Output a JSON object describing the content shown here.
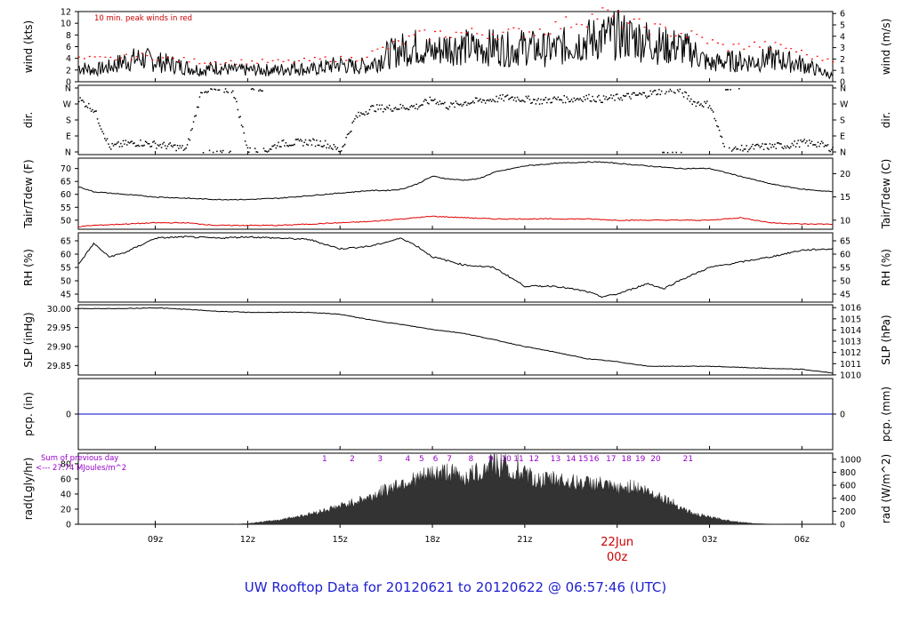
{
  "chart_data": {
    "type": "line",
    "title": "UW Rooftop Data for 20120621  to  20120622 @ 06:57:46  (UTC)",
    "x_axis": {
      "ticks": [
        "09z",
        "12z",
        "15z",
        "18z",
        "21z",
        "22Jun",
        "03z",
        "06z"
      ],
      "date_label": "22Jun",
      "date_sublabel": "00z",
      "date_color": "#cc0000"
    },
    "panels": [
      {
        "id": "wind",
        "left_label": "wind (kts)",
        "right_label": "wind (m/s)",
        "left_ticks": [
          "0",
          "2",
          "4",
          "6",
          "8",
          "10",
          "12"
        ],
        "right_ticks": [
          "0",
          "1",
          "2",
          "3",
          "4",
          "5",
          "6"
        ],
        "ylim": [
          0,
          12
        ],
        "annotation": "10 min. peak winds in red",
        "series": [
          {
            "color": "#000000",
            "x": [
              6.5,
              7,
              7.5,
              8,
              8.5,
              9,
              9.5,
              10,
              10.5,
              11,
              11.5,
              12,
              12.5,
              13,
              13.5,
              14,
              14.5,
              15,
              15.5,
              16,
              16.5,
              17,
              17.5,
              18,
              18.5,
              19,
              19.5,
              20,
              20.5,
              21,
              21.5,
              22,
              22.5,
              23,
              23.5,
              24,
              24.5,
              25,
              25.5,
              26,
              26.5,
              27,
              27.5,
              28,
              28.5,
              29,
              29.5,
              30,
              30.5,
              31
            ],
            "values": [
              2.5,
              2,
              2.5,
              3.5,
              4,
              3.5,
              3,
              2.5,
              2,
              2.5,
              2,
              2,
              2,
              2,
              2.5,
              2,
              2.5,
              3,
              2.5,
              3,
              4.5,
              5.5,
              6,
              5,
              6,
              6,
              5.5,
              6,
              5.5,
              6,
              5.5,
              5.5,
              6.5,
              7,
              7.5,
              8,
              7.5,
              7,
              6,
              6,
              5,
              3,
              3.5,
              3.5,
              3.5,
              4,
              3.5,
              3,
              2,
              1
            ]
          },
          {
            "color": "#ff0000",
            "x": [
              6.5,
              7.5,
              8.5,
              9.5,
              10.5,
              11.5,
              12.5,
              13.5,
              14.5,
              15.5,
              16.5,
              17.5,
              18.5,
              19.5,
              20.5,
              21.5,
              22.5,
              23,
              23.5,
              24,
              24.5,
              25.5,
              26.5,
              27.5,
              28.5,
              29.5,
              30.5
            ],
            "values": [
              4,
              4,
              4.5,
              4,
              3.5,
              3.5,
              3.5,
              3.5,
              4,
              4,
              6,
              8,
              8.5,
              8.5,
              8.5,
              9,
              10.5,
              11,
              12,
              11,
              10,
              9,
              8,
              6,
              6.5,
              6,
              4
            ]
          }
        ]
      },
      {
        "id": "dir",
        "left_label": "dir.",
        "right_label": "dir.",
        "left_ticks": [
          "N",
          "E",
          "S",
          "W",
          "N"
        ],
        "right_ticks": [
          "N",
          "E",
          "S",
          "W",
          "N"
        ],
        "ylim": [
          0,
          360
        ],
        "series": [
          {
            "color": "#000000",
            "type": "scatter",
            "x": [
              6.5,
              7,
              7.5,
              8,
              8.5,
              9,
              9.5,
              10,
              10.5,
              11,
              11.5,
              12,
              12.5,
              13,
              13.5,
              14,
              14.5,
              15,
              15.5,
              16,
              16.5,
              17,
              17.5,
              18,
              18.5,
              19,
              19.5,
              20,
              20.5,
              21,
              21.5,
              22,
              22.5,
              23,
              23.5,
              24,
              24.5,
              25,
              25.5,
              26,
              26.5,
              27,
              27.5,
              28,
              28.5,
              29,
              29.5,
              30,
              30.5,
              31
            ],
            "values": [
              300,
              240,
              30,
              50,
              55,
              45,
              35,
              20,
              355,
              350,
              355,
              10,
              5,
              50,
              55,
              60,
              50,
              10,
              200,
              250,
              250,
              255,
              260,
              300,
              260,
              280,
              290,
              300,
              310,
              300,
              290,
              300,
              300,
              310,
              300,
              310,
              320,
              330,
              350,
              350,
              280,
              270,
              10,
              20,
              30,
              35,
              40,
              55,
              50,
              20
            ]
          }
        ]
      },
      {
        "id": "temp",
        "left_label": "Tair/Tdew (F)",
        "right_label": "Tair/Tdew (C)",
        "left_ticks": [
          "50",
          "55",
          "60",
          "65",
          "70"
        ],
        "right_ticks": [
          "10",
          "15",
          "20"
        ],
        "ylim": [
          46.5,
          74
        ],
        "series": [
          {
            "color": "#000000",
            "x": [
              6.5,
              7,
              8,
              9,
              10,
              11,
              12,
              13,
              14,
              15,
              16,
              16.5,
              17,
              17.5,
              18,
              18.5,
              19,
              19.5,
              20,
              21,
              22,
              23,
              23.5,
              24,
              25,
              26,
              27,
              28,
              29,
              30,
              31
            ],
            "values": [
              63,
              61,
              60,
              59,
              58.5,
              58,
              58,
              58.5,
              59.5,
              60.5,
              61.5,
              61.5,
              62,
              64,
              67,
              66,
              65.5,
              66,
              68.5,
              71,
              72,
              72.5,
              72.5,
              72,
              71,
              70,
              70,
              67,
              64,
              62,
              61
            ]
          },
          {
            "color": "#e00000",
            "x": [
              6.5,
              7,
              8,
              9,
              10,
              11,
              12,
              13,
              14,
              15,
              16,
              17,
              18,
              19,
              20,
              21,
              22,
              23,
              24,
              25,
              26,
              27,
              28,
              29,
              30,
              31
            ],
            "values": [
              47.5,
              48,
              48.5,
              49,
              49,
              48,
              48,
              48,
              48.5,
              49,
              49.5,
              50.5,
              51.5,
              51,
              50.5,
              50.5,
              50.5,
              50.5,
              50,
              50,
              50,
              50,
              51,
              49,
              48.5,
              48.5
            ]
          }
        ]
      },
      {
        "id": "rh",
        "left_label": "RH (%)",
        "right_label": "RH (%)",
        "left_ticks": [
          "45",
          "50",
          "55",
          "60",
          "65"
        ],
        "right_ticks": [
          "45",
          "50",
          "55",
          "60",
          "65"
        ],
        "ylim": [
          42,
          68
        ],
        "series": [
          {
            "color": "#000000",
            "x": [
              6.5,
              7,
              7.5,
              8,
              9,
              10,
              11,
              12,
              13,
              14,
              15,
              16,
              17,
              17.5,
              18,
              19,
              20,
              21,
              22,
              23,
              23.5,
              24,
              25,
              25.5,
              26,
              27,
              28,
              29,
              30,
              31
            ],
            "values": [
              56,
              64,
              59,
              60.5,
              66,
              66.5,
              66,
              66.5,
              66,
              65.5,
              62,
              63,
              66,
              63,
              59,
              56,
              55,
              48,
              48,
              46,
              44,
              45,
              49,
              47,
              50,
              55,
              57,
              59,
              61.5,
              62
            ]
          }
        ]
      },
      {
        "id": "slp",
        "left_label": "SLP (inHg)",
        "right_label": "SLP (hPa)",
        "left_ticks": [
          "29.85",
          "29.90",
          "29.95",
          "30.00"
        ],
        "right_ticks": [
          "1010",
          "1011",
          "1012",
          "1013",
          "1014",
          "1015",
          "1016"
        ],
        "ylim": [
          29.825,
          30.01
        ],
        "series": [
          {
            "color": "#000000",
            "x": [
              6.5,
              8,
              9,
              10,
              11,
              12,
              13,
              14,
              15,
              16,
              17,
              18,
              19,
              20,
              21,
              22,
              23,
              24,
              25,
              26,
              27,
              28,
              29,
              30,
              31
            ],
            "values": [
              30.0,
              30.0,
              30.002,
              29.998,
              29.993,
              29.99,
              29.99,
              29.99,
              29.985,
              29.97,
              29.958,
              29.945,
              29.935,
              29.918,
              29.9,
              29.885,
              29.868,
              29.86,
              29.848,
              29.848,
              29.848,
              29.845,
              29.842,
              29.84,
              29.83
            ]
          }
        ]
      },
      {
        "id": "pcp",
        "left_label": "pcp. (in)",
        "right_label": "pcp. (mm)",
        "left_ticks": [
          "0"
        ],
        "right_ticks": [
          "0"
        ],
        "ylim": [
          -1,
          1
        ],
        "series": [
          {
            "color": "#0000cc",
            "x": [
              6.5,
              31
            ],
            "values": [
              0,
              0
            ]
          }
        ]
      },
      {
        "id": "rad",
        "left_label": "rad(Lgly/hr)",
        "right_label": "rad (W/m^2)",
        "left_ticks": [
          "0",
          "20",
          "40",
          "60",
          "80"
        ],
        "right_ticks": [
          "0",
          "200",
          "400",
          "600",
          "800",
          "1000"
        ],
        "ylim": [
          0,
          94
        ],
        "annotation_line1": "Sum of previous day",
        "annotation_line2": "<--- 27.74 MJoules/m^2",
        "hour_labels": [
          "1",
          "2",
          "3",
          "4",
          "5",
          "6",
          "7",
          "8",
          "9",
          "10",
          "11",
          "12",
          "13",
          "14",
          "15",
          "16",
          "17",
          "18",
          "19",
          "20",
          "21"
        ],
        "hour_positions": [
          14.5,
          15.4,
          16.3,
          17.2,
          17.65,
          18.1,
          18.55,
          19.25,
          19.9,
          20.4,
          20.8,
          21.3,
          22.0,
          22.5,
          22.9,
          23.25,
          23.8,
          24.3,
          24.75,
          25.25,
          26.3
        ],
        "series": [
          {
            "color": "#333333",
            "type": "area",
            "x": [
              11.5,
              12,
              13,
              14,
              15,
              16,
              16.5,
              17,
              17.5,
              18,
              18.5,
              19,
              19.5,
              20,
              20.5,
              21,
              21.5,
              22,
              22.5,
              23,
              23.5,
              24,
              24.5,
              25,
              25.5,
              26,
              26.5,
              27,
              27.5,
              28,
              28.5,
              29,
              29.5
            ],
            "values": [
              0,
              1,
              6,
              14,
              25,
              38,
              48,
              58,
              62,
              70,
              72,
              65,
              72,
              85,
              70,
              68,
              60,
              63,
              58,
              57,
              55,
              48,
              53,
              45,
              37,
              25,
              14,
              10,
              6,
              3,
              1,
              0.3,
              0
            ]
          }
        ]
      }
    ]
  }
}
